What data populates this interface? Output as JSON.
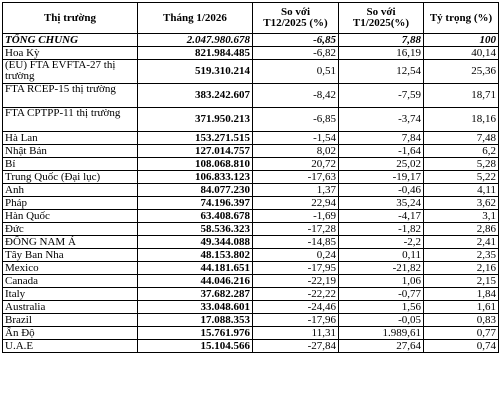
{
  "table": {
    "headers": {
      "market": "Thị trường",
      "value": "Tháng 1/2026",
      "vs_prev_month_line1": "So với",
      "vs_prev_month_line2": "T12/2025 (%)",
      "vs_prev_year_line1": "So với",
      "vs_prev_year_line2": "T1/2025(%)",
      "share": "Tỷ trọng (%)"
    },
    "rows": [
      {
        "market": "TỔNG CHUNG",
        "value": "2.047.980.678",
        "vs_prev_month": "-6,85",
        "vs_prev_year": "7,88",
        "share": "100"
      },
      {
        "market": "Hoa Kỳ",
        "value": "821.984.485",
        "vs_prev_month": "-6,82",
        "vs_prev_year": "16,19",
        "share": "40,14"
      },
      {
        "market": "(EU) FTA EVFTA-27 thị trường",
        "value": "519.310.214",
        "vs_prev_month": "0,51",
        "vs_prev_year": "12,54",
        "share": "25,36"
      },
      {
        "market": "FTA RCEP-15 thị trường",
        "value": "383.242.607",
        "vs_prev_month": "-8,42",
        "vs_prev_year": "-7,59",
        "share": "18,71"
      },
      {
        "market": "FTA CPTPP-11 thị trường",
        "value": "371.950.213",
        "vs_prev_month": "-6,85",
        "vs_prev_year": "-3,74",
        "share": "18,16"
      },
      {
        "market": "Hà Lan",
        "value": "153.271.515",
        "vs_prev_month": "-1,54",
        "vs_prev_year": "7,84",
        "share": "7,48"
      },
      {
        "market": "Nhật Bản",
        "value": "127.014.757",
        "vs_prev_month": "8,02",
        "vs_prev_year": "-1,64",
        "share": "6,2"
      },
      {
        "market": "Bỉ",
        "value": "108.068.810",
        "vs_prev_month": "20,72",
        "vs_prev_year": "25,02",
        "share": "5,28"
      },
      {
        "market": "Trung Quốc (Đại lục)",
        "value": "106.833.123",
        "vs_prev_month": "-17,63",
        "vs_prev_year": "-19,17",
        "share": "5,22"
      },
      {
        "market": "Anh",
        "value": "84.077.230",
        "vs_prev_month": "1,37",
        "vs_prev_year": "-0,46",
        "share": "4,11"
      },
      {
        "market": "Pháp",
        "value": "74.196.397",
        "vs_prev_month": "22,94",
        "vs_prev_year": "35,24",
        "share": "3,62"
      },
      {
        "market": "Hàn Quốc",
        "value": "63.408.678",
        "vs_prev_month": "-1,69",
        "vs_prev_year": "-4,17",
        "share": "3,1"
      },
      {
        "market": "Đức",
        "value": "58.536.323",
        "vs_prev_month": "-17,28",
        "vs_prev_year": "-1,82",
        "share": "2,86"
      },
      {
        "market": "ĐÔNG NAM Á",
        "value": "49.344.088",
        "vs_prev_month": "-14,85",
        "vs_prev_year": "-2,2",
        "share": "2,41"
      },
      {
        "market": "Tây Ban Nha",
        "value": "48.153.802",
        "vs_prev_month": "0,24",
        "vs_prev_year": "0,11",
        "share": "2,35"
      },
      {
        "market": "Mexico",
        "value": "44.181.651",
        "vs_prev_month": "-17,95",
        "vs_prev_year": "-21,82",
        "share": "2,16"
      },
      {
        "market": "Canada",
        "value": "44.046.216",
        "vs_prev_month": "-22,19",
        "vs_prev_year": "1,06",
        "share": "2,15"
      },
      {
        "market": "Italy",
        "value": "37.682.287",
        "vs_prev_month": "-22,22",
        "vs_prev_year": "-0,77",
        "share": "1,84"
      },
      {
        "market": "Australia",
        "value": "33.048.601",
        "vs_prev_month": "-24,46",
        "vs_prev_year": "1,56",
        "share": "1,61"
      },
      {
        "market": "Brazil",
        "value": "17.088.353",
        "vs_prev_month": "-17,96",
        "vs_prev_year": "-0,05",
        "share": "0,83"
      },
      {
        "market": "Ấn Độ",
        "value": "15.761.976",
        "vs_prev_month": "11,31",
        "vs_prev_year": "1.989,61",
        "share": "0,77"
      },
      {
        "market": "U.A.E",
        "value": "15.104.566",
        "vs_prev_month": "-27,84",
        "vs_prev_year": "27,64",
        "share": "0,74"
      }
    ]
  }
}
